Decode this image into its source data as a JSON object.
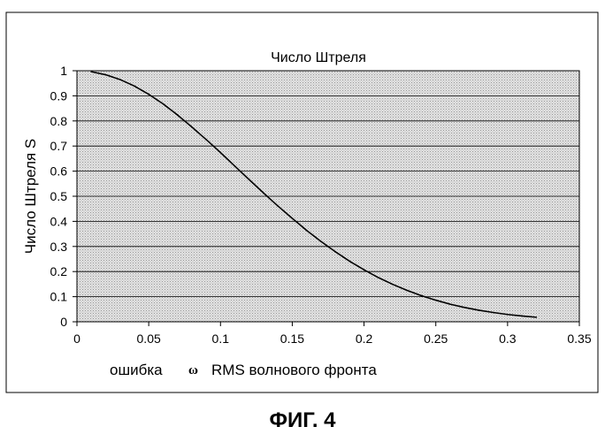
{
  "figure_caption": "ФИГ. 4",
  "chart_data": {
    "type": "line",
    "title": "Число Штреля",
    "ylabel": "Число Штреля S",
    "xlabel_prefix": "ошибка",
    "xlabel_symbol": "ω",
    "xlabel_suffix": "RMS волнового фронта",
    "xlim": [
      0,
      0.35
    ],
    "ylim": [
      0,
      1
    ],
    "xticks": [
      0,
      0.05,
      0.1,
      0.15,
      0.2,
      0.25,
      0.3,
      0.35
    ],
    "yticks": [
      0,
      0.1,
      0.2,
      0.3,
      0.4,
      0.5,
      0.6,
      0.7,
      0.8,
      0.9,
      1
    ],
    "xtick_labels": [
      "0",
      "0.05",
      "0.1",
      "0.15",
      "0.2",
      "0.25",
      "0.3",
      "0.35"
    ],
    "ytick_labels": [
      "0",
      "0.1",
      "0.2",
      "0.3",
      "0.4",
      "0.5",
      "0.6",
      "0.7",
      "0.8",
      "0.9",
      "1"
    ],
    "grid": true,
    "legend": false,
    "series": [
      {
        "x": [
          0.01,
          0.02,
          0.03,
          0.04,
          0.05,
          0.06,
          0.07,
          0.08,
          0.09,
          0.1,
          0.11,
          0.12,
          0.13,
          0.14,
          0.15,
          0.16,
          0.17,
          0.18,
          0.19,
          0.2,
          0.21,
          0.22,
          0.23,
          0.24,
          0.25,
          0.26,
          0.27,
          0.28,
          0.29,
          0.3,
          0.31,
          0.32
        ],
        "y": [
          0.996,
          0.984,
          0.965,
          0.939,
          0.906,
          0.868,
          0.824,
          0.776,
          0.726,
          0.674,
          0.62,
          0.566,
          0.513,
          0.461,
          0.412,
          0.364,
          0.32,
          0.279,
          0.241,
          0.207,
          0.176,
          0.149,
          0.125,
          0.104,
          0.086,
          0.07,
          0.057,
          0.046,
          0.037,
          0.029,
          0.023,
          0.018
        ]
      }
    ]
  }
}
